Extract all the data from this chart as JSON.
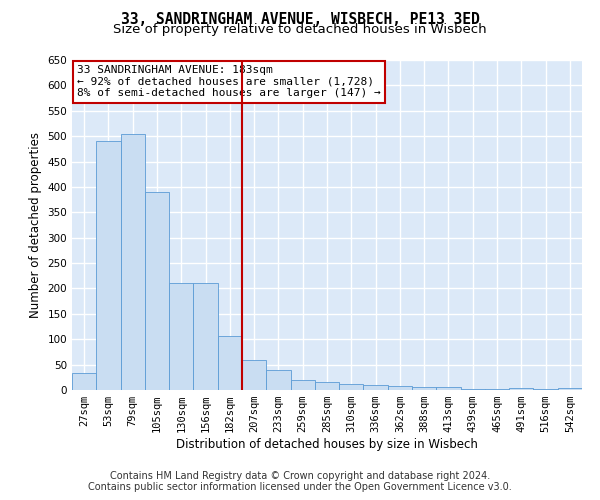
{
  "title": "33, SANDRINGHAM AVENUE, WISBECH, PE13 3ED",
  "subtitle": "Size of property relative to detached houses in Wisbech",
  "xlabel": "Distribution of detached houses by size in Wisbech",
  "ylabel": "Number of detached properties",
  "footer1": "Contains HM Land Registry data © Crown copyright and database right 2024.",
  "footer2": "Contains public sector information licensed under the Open Government Licence v3.0.",
  "categories": [
    "27sqm",
    "53sqm",
    "79sqm",
    "105sqm",
    "130sqm",
    "156sqm",
    "182sqm",
    "207sqm",
    "233sqm",
    "259sqm",
    "285sqm",
    "310sqm",
    "336sqm",
    "362sqm",
    "388sqm",
    "413sqm",
    "439sqm",
    "465sqm",
    "491sqm",
    "516sqm",
    "542sqm"
  ],
  "values": [
    33,
    490,
    505,
    390,
    210,
    210,
    107,
    60,
    40,
    20,
    15,
    12,
    10,
    8,
    5,
    5,
    2,
    2,
    4,
    2,
    4
  ],
  "bar_color": "#c9ddf2",
  "bar_edge_color": "#5b9bd5",
  "vline_x": 6.5,
  "vline_color": "#c00000",
  "annotation_text": "33 SANDRINGHAM AVENUE: 183sqm\n← 92% of detached houses are smaller (1,728)\n8% of semi-detached houses are larger (147) →",
  "annotation_box_color": "#ffffff",
  "annotation_box_edge": "#c00000",
  "ylim": [
    0,
    650
  ],
  "yticks": [
    0,
    50,
    100,
    150,
    200,
    250,
    300,
    350,
    400,
    450,
    500,
    550,
    600,
    650
  ],
  "background_color": "#dce9f8",
  "grid_color": "#ffffff",
  "title_fontsize": 10.5,
  "subtitle_fontsize": 9.5,
  "axis_label_fontsize": 8.5,
  "tick_fontsize": 7.5,
  "footer_fontsize": 7.0,
  "annot_fontsize": 8.0
}
